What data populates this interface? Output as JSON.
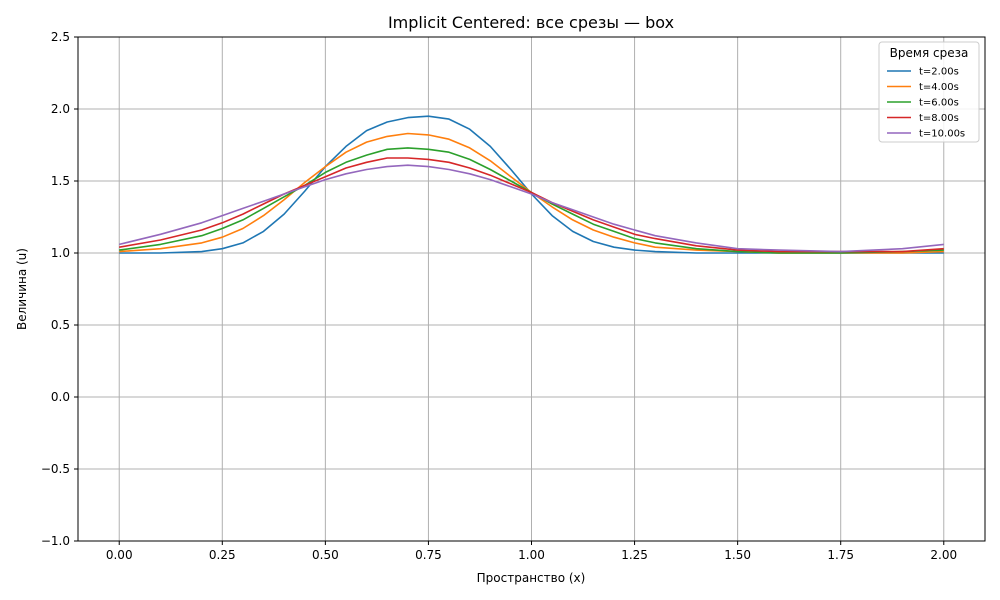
{
  "chart_data": {
    "type": "line",
    "title": "Implicit Centered: все срезы — box",
    "xlabel": "Пространство (x)",
    "ylabel": "Величина (u)",
    "xlim": [
      -0.1,
      2.1
    ],
    "ylim": [
      -1.0,
      2.5
    ],
    "xticks": [
      "0.00",
      "0.25",
      "0.50",
      "0.75",
      "1.00",
      "1.25",
      "1.50",
      "1.75",
      "2.00"
    ],
    "yticks": [
      "−1.0",
      "−0.5",
      "0.0",
      "0.5",
      "1.0",
      "1.5",
      "2.0",
      "2.5"
    ],
    "grid": true,
    "legend": {
      "title": "Время среза",
      "placement": "top-right"
    },
    "series": [
      {
        "name": "t=2.00s",
        "color": "#1f77b4",
        "x": [
          0.0,
          0.1,
          0.2,
          0.25,
          0.3,
          0.35,
          0.4,
          0.45,
          0.5,
          0.55,
          0.6,
          0.65,
          0.7,
          0.75,
          0.8,
          0.85,
          0.9,
          0.95,
          1.0,
          1.05,
          1.1,
          1.15,
          1.2,
          1.25,
          1.3,
          1.4,
          1.5,
          1.6,
          1.75,
          1.9,
          2.0
        ],
        "y": [
          1.0,
          1.0,
          1.01,
          1.03,
          1.07,
          1.15,
          1.27,
          1.43,
          1.6,
          1.74,
          1.85,
          1.91,
          1.94,
          1.95,
          1.93,
          1.86,
          1.74,
          1.58,
          1.41,
          1.26,
          1.15,
          1.08,
          1.04,
          1.02,
          1.01,
          1.0,
          1.0,
          1.0,
          1.0,
          1.0,
          1.0
        ]
      },
      {
        "name": "t=4.00s",
        "color": "#ff7f0e",
        "x": [
          0.0,
          0.1,
          0.2,
          0.25,
          0.3,
          0.35,
          0.4,
          0.45,
          0.5,
          0.55,
          0.6,
          0.65,
          0.7,
          0.75,
          0.8,
          0.85,
          0.9,
          0.95,
          1.0,
          1.05,
          1.1,
          1.15,
          1.2,
          1.25,
          1.3,
          1.4,
          1.5,
          1.6,
          1.75,
          1.9,
          2.0
        ],
        "y": [
          1.01,
          1.03,
          1.07,
          1.11,
          1.17,
          1.26,
          1.37,
          1.49,
          1.6,
          1.7,
          1.77,
          1.81,
          1.83,
          1.82,
          1.79,
          1.73,
          1.64,
          1.53,
          1.42,
          1.32,
          1.23,
          1.16,
          1.11,
          1.07,
          1.04,
          1.02,
          1.01,
          1.0,
          1.0,
          1.0,
          1.01
        ]
      },
      {
        "name": "t=6.00s",
        "color": "#2ca02c",
        "x": [
          0.0,
          0.1,
          0.2,
          0.25,
          0.3,
          0.35,
          0.4,
          0.45,
          0.5,
          0.55,
          0.6,
          0.65,
          0.7,
          0.75,
          0.8,
          0.85,
          0.9,
          0.95,
          1.0,
          1.05,
          1.1,
          1.15,
          1.2,
          1.25,
          1.3,
          1.4,
          1.5,
          1.6,
          1.75,
          1.9,
          2.0
        ],
        "y": [
          1.02,
          1.06,
          1.12,
          1.17,
          1.23,
          1.31,
          1.39,
          1.47,
          1.56,
          1.63,
          1.68,
          1.72,
          1.73,
          1.72,
          1.7,
          1.65,
          1.58,
          1.5,
          1.42,
          1.34,
          1.27,
          1.2,
          1.15,
          1.1,
          1.07,
          1.03,
          1.01,
          1.0,
          1.0,
          1.01,
          1.02
        ]
      },
      {
        "name": "t=8.00s",
        "color": "#d62728",
        "x": [
          0.0,
          0.1,
          0.2,
          0.25,
          0.3,
          0.35,
          0.4,
          0.45,
          0.5,
          0.55,
          0.6,
          0.65,
          0.7,
          0.75,
          0.8,
          0.85,
          0.9,
          0.95,
          1.0,
          1.05,
          1.1,
          1.15,
          1.2,
          1.25,
          1.3,
          1.4,
          1.5,
          1.6,
          1.75,
          1.9,
          2.0
        ],
        "y": [
          1.04,
          1.09,
          1.16,
          1.21,
          1.27,
          1.34,
          1.41,
          1.47,
          1.53,
          1.59,
          1.63,
          1.66,
          1.66,
          1.65,
          1.63,
          1.59,
          1.54,
          1.48,
          1.42,
          1.35,
          1.29,
          1.23,
          1.18,
          1.13,
          1.1,
          1.05,
          1.02,
          1.01,
          1.01,
          1.01,
          1.03
        ]
      },
      {
        "name": "t=10.00s",
        "color": "#9467bd",
        "x": [
          0.0,
          0.1,
          0.2,
          0.25,
          0.3,
          0.35,
          0.4,
          0.45,
          0.5,
          0.55,
          0.6,
          0.65,
          0.7,
          0.75,
          0.8,
          0.85,
          0.9,
          0.95,
          1.0,
          1.05,
          1.1,
          1.15,
          1.2,
          1.25,
          1.3,
          1.4,
          1.5,
          1.6,
          1.75,
          1.9,
          2.0
        ],
        "y": [
          1.06,
          1.13,
          1.21,
          1.26,
          1.31,
          1.36,
          1.41,
          1.46,
          1.51,
          1.55,
          1.58,
          1.6,
          1.61,
          1.6,
          1.58,
          1.55,
          1.51,
          1.46,
          1.41,
          1.35,
          1.3,
          1.25,
          1.2,
          1.16,
          1.12,
          1.07,
          1.03,
          1.02,
          1.01,
          1.03,
          1.06
        ]
      }
    ]
  }
}
